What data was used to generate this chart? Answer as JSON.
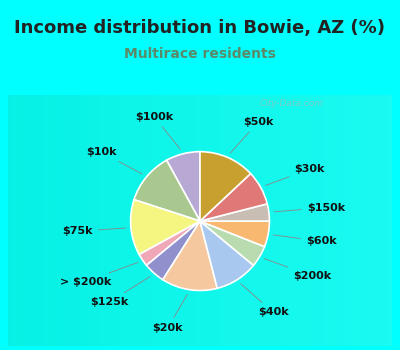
{
  "title": "Income distribution in Bowie, AZ (%)",
  "subtitle": "Multirace residents",
  "bg_color": "#00ffff",
  "chart_bg_top": "#e8f5ee",
  "chart_bg_bottom": "#d0ece0",
  "labels": [
    "$100k",
    "$10k",
    "$75k",
    "> $200k",
    "$125k",
    "$20k",
    "$40k",
    "$200k",
    "$60k",
    "$150k",
    "$30k",
    "$50k"
  ],
  "values": [
    8,
    12,
    13,
    3,
    5,
    13,
    10,
    5,
    6,
    4,
    8,
    13
  ],
  "colors": [
    "#b8a8d4",
    "#a8c890",
    "#f5f582",
    "#f0a8b8",
    "#9090cc",
    "#f5c8a0",
    "#a8c8f0",
    "#b8dcb0",
    "#f8b870",
    "#c8beb4",
    "#e07878",
    "#c8a030"
  ],
  "start_angle": 90,
  "title_fontsize": 13,
  "subtitle_fontsize": 10,
  "label_fontsize": 8,
  "watermark": "City-Data.com",
  "title_color": "#222222",
  "subtitle_color": "#5a8a6a",
  "label_color": "#111111",
  "line_color": "#888888"
}
